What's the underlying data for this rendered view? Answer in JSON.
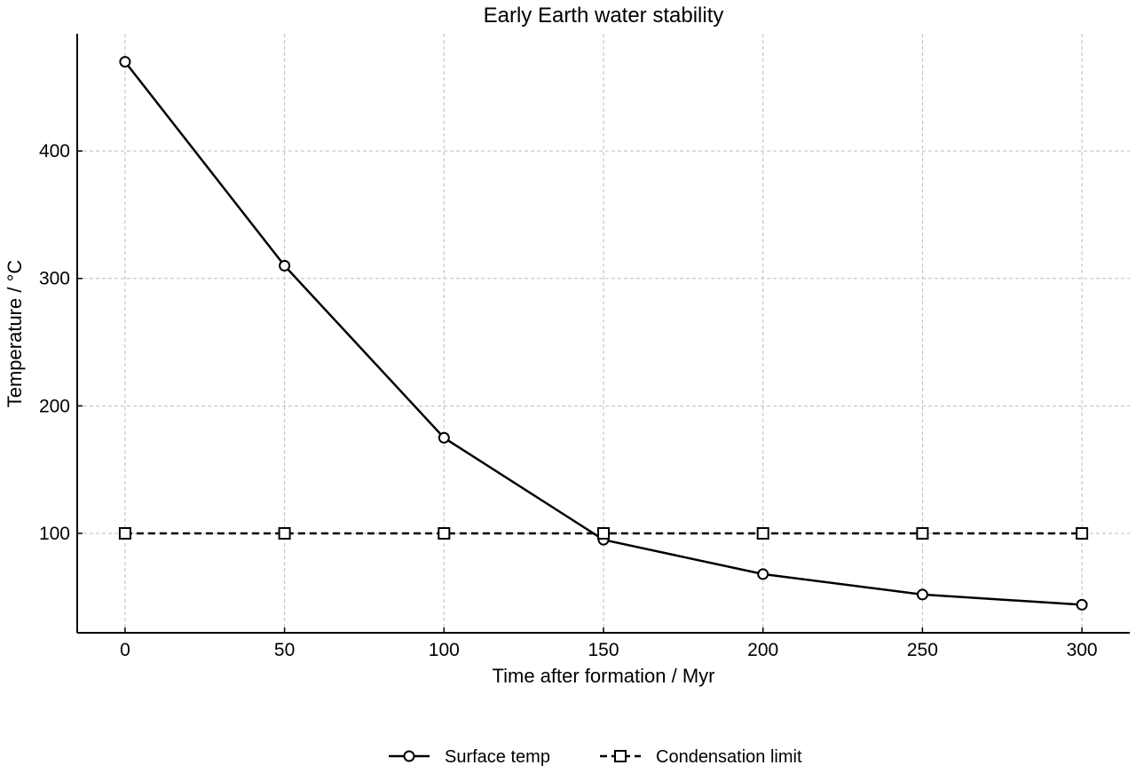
{
  "chart_data": {
    "type": "line",
    "title": "Early Earth water stability",
    "xlabel": "Time after formation / Myr",
    "ylabel": "Temperature / °C",
    "x": [
      0,
      50,
      100,
      150,
      200,
      250,
      300
    ],
    "xlim": [
      -15,
      315
    ],
    "ylim": [
      22,
      492
    ],
    "xticks": [
      0,
      50,
      100,
      150,
      200,
      250,
      300
    ],
    "yticks": [
      100,
      200,
      300,
      400
    ],
    "grid": true,
    "legend_position": "bottom-center",
    "series": [
      {
        "name": "Surface temp",
        "values": [
          470,
          310,
          175,
          95,
          68,
          52,
          44
        ],
        "line_style": "solid",
        "marker": "circle",
        "color": "#000000"
      },
      {
        "name": "Condensation limit",
        "values": [
          100,
          100,
          100,
          100,
          100,
          100,
          100
        ],
        "line_style": "dashed",
        "marker": "square",
        "color": "#000000"
      }
    ]
  }
}
